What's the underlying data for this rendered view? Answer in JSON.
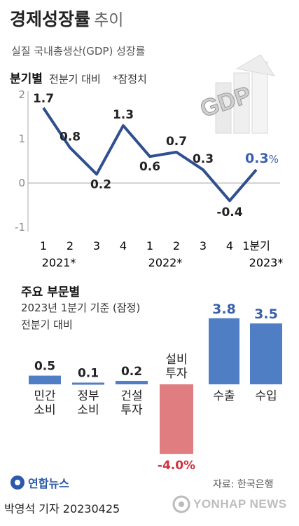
{
  "header": {
    "title_bold": "경제성장률",
    "title_light": "추이",
    "subtitle": "실질 국내총생산(GDP) 성장률"
  },
  "quarterly": {
    "section_title": "분기별",
    "section_desc": "전분기 대비",
    "note": "*잠정치",
    "percent_sign": "%",
    "x_quarters": [
      "1",
      "2",
      "3",
      "4",
      "1",
      "2",
      "3",
      "4",
      "1분기"
    ],
    "x_years": [
      "2021*",
      "2022*",
      "2023*"
    ]
  },
  "sectors": {
    "section_title": "주요 부문별",
    "desc_line1": "2023년 1분기 기준 (잠정)",
    "desc_line2": "전분기 대비"
  },
  "footer": {
    "logo": "연합뉴스",
    "source": "자료: 한국은행",
    "byline": "박영석 기자  20230425",
    "watermark": "YONHAP NEWS"
  },
  "deco": {
    "gdp_text": "GDP"
  },
  "colors": {
    "line": "#2f4f8f",
    "bar_positive": "#4f7ec4",
    "bar_negative": "#e07d80",
    "negative_text": "#d0323f",
    "axis": "#aaaaaa"
  },
  "chart_data": [
    {
      "type": "line",
      "title": "분기별 전분기 대비",
      "categories": [
        "2021 1분기",
        "2021 2분기",
        "2021 3분기",
        "2021 4분기",
        "2022 1분기",
        "2022 2분기",
        "2022 3분기",
        "2022 4분기",
        "2023 1분기"
      ],
      "values": [
        1.7,
        0.8,
        0.2,
        1.3,
        0.6,
        0.7,
        0.3,
        -0.4,
        0.3
      ],
      "value_labels": [
        "1.7",
        "0.8",
        "0.2",
        "1.3",
        "0.6",
        "0.7",
        "0.3",
        "-0.4",
        "0.3"
      ],
      "yticks": [
        "2",
        "1",
        "0",
        "-1"
      ],
      "ylim": [
        -1,
        2
      ],
      "grid": false
    },
    {
      "type": "bar",
      "title": "주요 부문별",
      "categories": [
        "민간\n소비",
        "정부\n소비",
        "건설\n투자",
        "설비\n투자",
        "수출",
        "수입"
      ],
      "values": [
        0.5,
        0.1,
        0.2,
        -4.0,
        3.8,
        3.5
      ],
      "value_labels": [
        "0.5",
        "0.1",
        "0.2",
        "-4.0%",
        "3.8",
        "3.5"
      ]
    }
  ]
}
